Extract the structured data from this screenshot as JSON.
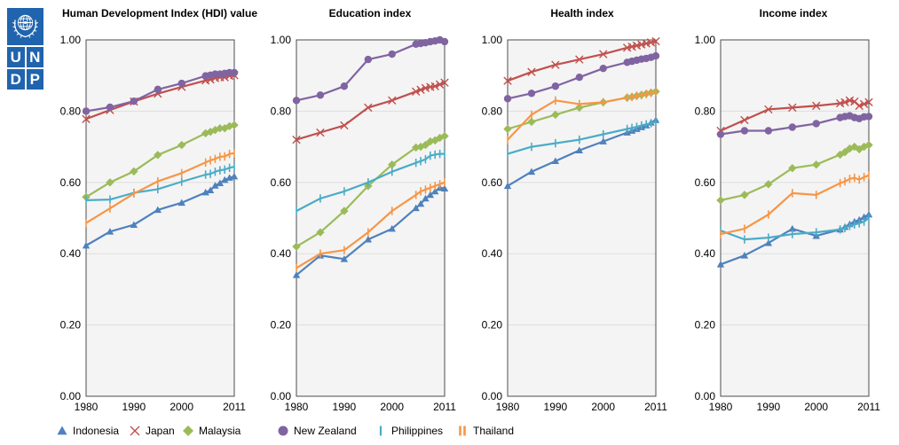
{
  "logo": {
    "cells": [
      "U",
      "N",
      "D",
      "P"
    ],
    "color": "#2064AE"
  },
  "style": {
    "plot_bg": "#f4f4f4",
    "plot_border": "#4d4d4d",
    "gridline": "#dedede",
    "text": "#000000"
  },
  "axes": {
    "x_ticks": [
      {
        "value": 1980,
        "label": "1980"
      },
      {
        "value": 1990,
        "label": "1990"
      },
      {
        "value": 2000,
        "label": "2000"
      },
      {
        "value": 2011,
        "label": "2011"
      }
    ],
    "y_ticks": [
      {
        "value": 1.0,
        "label": "1.00"
      },
      {
        "value": 0.8,
        "label": "0.80"
      },
      {
        "value": 0.6,
        "label": "0.60"
      },
      {
        "value": 0.4,
        "label": "0.40"
      },
      {
        "value": 0.2,
        "label": "0.20"
      },
      {
        "value": 0.0,
        "label": "0.00"
      }
    ],
    "ylim": [
      0,
      1
    ],
    "grid": true
  },
  "legend": {
    "position": "bottom",
    "items": [
      {
        "label": "Indonesia",
        "color": "#4F81BD",
        "marker": "triangle"
      },
      {
        "label": "Japan",
        "color": "#C0504D",
        "marker": "x"
      },
      {
        "label": "Malaysia",
        "color": "#9BBB59",
        "marker": "diamond"
      },
      {
        "label": "New Zealand",
        "color": "#8064A2",
        "marker": "circle"
      },
      {
        "label": "Philippines",
        "color": "#4BACC6",
        "marker": "vdash"
      },
      {
        "label": "Thailand",
        "color": "#F79646",
        "marker": "vdash2"
      }
    ]
  },
  "chart_data": [
    {
      "type": "line",
      "title": "Human Development Index (HDI) value",
      "x": [
        1980,
        1985,
        1990,
        1995,
        2000,
        2005,
        2006,
        2007,
        2008,
        2009,
        2010,
        2011
      ],
      "ylim": [
        0,
        1
      ],
      "series": [
        {
          "name": "Indonesia",
          "values": [
            0.423,
            0.462,
            0.481,
            0.523,
            0.543,
            0.572,
            0.578,
            0.591,
            0.598,
            0.607,
            0.613,
            0.617
          ]
        },
        {
          "name": "Japan",
          "values": [
            0.778,
            0.803,
            0.827,
            0.849,
            0.868,
            0.886,
            0.889,
            0.893,
            0.895,
            0.895,
            0.899,
            0.901
          ]
        },
        {
          "name": "Malaysia",
          "values": [
            0.559,
            0.6,
            0.631,
            0.677,
            0.705,
            0.738,
            0.742,
            0.747,
            0.752,
            0.752,
            0.758,
            0.761
          ]
        },
        {
          "name": "New Zealand",
          "values": [
            0.8,
            0.811,
            0.828,
            0.861,
            0.878,
            0.899,
            0.901,
            0.904,
            0.904,
            0.906,
            0.908,
            0.908
          ]
        },
        {
          "name": "Philippines",
          "values": [
            0.55,
            0.552,
            0.571,
            0.581,
            0.602,
            0.622,
            0.624,
            0.63,
            0.634,
            0.636,
            0.641,
            0.644
          ]
        },
        {
          "name": "Thailand",
          "values": [
            0.486,
            0.527,
            0.569,
            0.603,
            0.626,
            0.656,
            0.662,
            0.666,
            0.672,
            0.673,
            0.68,
            0.682
          ]
        }
      ]
    },
    {
      "type": "line",
      "title": "Education index",
      "x": [
        1980,
        1985,
        1990,
        1995,
        2000,
        2005,
        2006,
        2007,
        2008,
        2009,
        2010,
        2011
      ],
      "ylim": [
        0,
        1
      ],
      "series": [
        {
          "name": "Indonesia",
          "values": [
            0.34,
            0.395,
            0.385,
            0.44,
            0.47,
            0.528,
            0.54,
            0.555,
            0.565,
            0.575,
            0.585,
            0.583
          ]
        },
        {
          "name": "Japan",
          "values": [
            0.72,
            0.74,
            0.76,
            0.81,
            0.83,
            0.855,
            0.86,
            0.865,
            0.868,
            0.87,
            0.875,
            0.88
          ]
        },
        {
          "name": "Malaysia",
          "values": [
            0.42,
            0.46,
            0.52,
            0.59,
            0.65,
            0.698,
            0.7,
            0.705,
            0.715,
            0.718,
            0.725,
            0.73
          ]
        },
        {
          "name": "New Zealand",
          "values": [
            0.83,
            0.845,
            0.87,
            0.945,
            0.96,
            0.988,
            0.99,
            0.992,
            0.995,
            0.997,
            1.0,
            0.995
          ]
        },
        {
          "name": "Philippines",
          "values": [
            0.52,
            0.555,
            0.575,
            0.6,
            0.63,
            0.655,
            0.66,
            0.665,
            0.675,
            0.678,
            0.68,
            0.68
          ]
        },
        {
          "name": "Thailand",
          "values": [
            0.36,
            0.4,
            0.41,
            0.46,
            0.52,
            0.565,
            0.575,
            0.58,
            0.585,
            0.59,
            0.595,
            0.6
          ]
        }
      ]
    },
    {
      "type": "line",
      "title": "Health index",
      "x": [
        1980,
        1985,
        1990,
        1995,
        2000,
        2005,
        2006,
        2007,
        2008,
        2009,
        2010,
        2011
      ],
      "ylim": [
        0,
        1
      ],
      "series": [
        {
          "name": "Indonesia",
          "values": [
            0.59,
            0.63,
            0.66,
            0.69,
            0.715,
            0.74,
            0.745,
            0.75,
            0.755,
            0.76,
            0.768,
            0.775
          ]
        },
        {
          "name": "Japan",
          "values": [
            0.885,
            0.91,
            0.93,
            0.945,
            0.96,
            0.978,
            0.981,
            0.984,
            0.987,
            0.99,
            0.993,
            0.996
          ]
        },
        {
          "name": "Malaysia",
          "values": [
            0.75,
            0.77,
            0.79,
            0.81,
            0.825,
            0.838,
            0.84,
            0.843,
            0.846,
            0.849,
            0.852,
            0.855
          ]
        },
        {
          "name": "New Zealand",
          "values": [
            0.835,
            0.85,
            0.87,
            0.895,
            0.92,
            0.937,
            0.94,
            0.943,
            0.946,
            0.948,
            0.951,
            0.955
          ]
        },
        {
          "name": "Philippines",
          "values": [
            0.68,
            0.7,
            0.71,
            0.72,
            0.735,
            0.75,
            0.753,
            0.756,
            0.76,
            0.763,
            0.766,
            0.77
          ]
        },
        {
          "name": "Thailand",
          "values": [
            0.72,
            0.79,
            0.83,
            0.82,
            0.825,
            0.838,
            0.84,
            0.843,
            0.845,
            0.848,
            0.851,
            0.855
          ]
        }
      ]
    },
    {
      "type": "line",
      "title": "Income index",
      "x": [
        1980,
        1985,
        1990,
        1995,
        2000,
        2005,
        2006,
        2007,
        2008,
        2009,
        2010,
        2011
      ],
      "ylim": [
        0,
        1
      ],
      "series": [
        {
          "name": "Indonesia",
          "values": [
            0.37,
            0.395,
            0.43,
            0.47,
            0.45,
            0.468,
            0.475,
            0.483,
            0.49,
            0.495,
            0.503,
            0.51
          ]
        },
        {
          "name": "Japan",
          "values": [
            0.745,
            0.775,
            0.805,
            0.81,
            0.815,
            0.822,
            0.825,
            0.83,
            0.827,
            0.815,
            0.82,
            0.825
          ]
        },
        {
          "name": "Malaysia",
          "values": [
            0.55,
            0.565,
            0.595,
            0.64,
            0.65,
            0.678,
            0.685,
            0.695,
            0.7,
            0.693,
            0.7,
            0.705
          ]
        },
        {
          "name": "New Zealand",
          "values": [
            0.735,
            0.745,
            0.745,
            0.755,
            0.765,
            0.782,
            0.785,
            0.787,
            0.782,
            0.779,
            0.784,
            0.785
          ]
        },
        {
          "name": "Philippines",
          "values": [
            0.465,
            0.44,
            0.445,
            0.455,
            0.46,
            0.468,
            0.472,
            0.478,
            0.482,
            0.485,
            0.49,
            0.5
          ]
        },
        {
          "name": "Thailand",
          "values": [
            0.455,
            0.47,
            0.51,
            0.57,
            0.565,
            0.598,
            0.603,
            0.61,
            0.613,
            0.608,
            0.615,
            0.62
          ]
        }
      ]
    }
  ]
}
